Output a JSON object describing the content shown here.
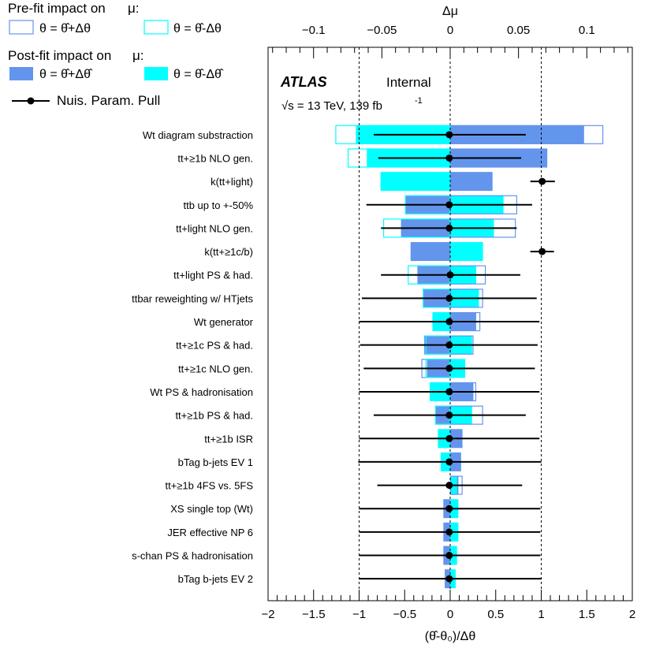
{
  "legend": {
    "prefit_title": "Pre-fit impact on",
    "postfit_title": "Post-fit impact on",
    "mu": "μ:",
    "plus_label": "θ = θ̂+Δθ",
    "minus_label": "θ = θ̂-Δθ",
    "postfit_plus_label": "θ = θ̂+Δθ̂",
    "postfit_minus_label": "θ = θ̂-Δθ̂",
    "pull_label": "Nuis. Param. Pull",
    "colors": {
      "plus": "#6495ed",
      "minus": "#00ffff",
      "pull": "#000000"
    }
  },
  "atlas": {
    "label": "ATLAS",
    "status": "Internal",
    "energy": "√s = 13 TeV, 139 fb",
    "lumi_exp": "-1"
  },
  "chart_data": {
    "type": "bar",
    "subtype": "ranking-plot",
    "title": "",
    "xlabel": "(θ̂-θ₀)/Δθ",
    "x2label": "Δμ",
    "xlim": [
      -2,
      2
    ],
    "x2lim": [
      -0.1333,
      0.1333
    ],
    "xticks": [
      -2,
      -1.5,
      -1,
      -0.5,
      0,
      0.5,
      1,
      1.5,
      2
    ],
    "x2ticks": [
      -0.1,
      -0.05,
      0,
      0.05,
      0.1
    ],
    "grid": false,
    "legend_position": "top-left",
    "categories": [
      "Wt diagram substraction",
      "tt+≥1b NLO gen.",
      "k(tt+light)",
      "ttb up to +-50%",
      "tt+light NLO gen.",
      "k(tt+≥1c/b)",
      "tt+light PS & had.",
      "ttbar reweighting w/ HTjets",
      "Wt generator",
      "tt+≥1c PS & had.",
      "tt+≥1c NLO gen.",
      "Wt PS & hadronisation",
      "tt+≥1b PS & had.",
      "tt+≥1b ISR",
      "bTag b-jets EV 1",
      "tt+≥1b 4FS vs. 5FS",
      "XS single top (Wt)",
      "JER effective NP 6",
      "s-chan PS & hadronisation",
      "bTag b-jets EV 2"
    ],
    "prefit_plus": [
      0.112,
      0.071,
      null,
      0.049,
      0.048,
      null,
      0.026,
      0.024,
      0.022,
      0.017,
      -0.021,
      0.019,
      0.024,
      null,
      null,
      0.009,
      null,
      null,
      null,
      null
    ],
    "prefit_minus": [
      -0.084,
      -0.075,
      null,
      -0.033,
      -0.049,
      null,
      -0.031,
      -0.02,
      null,
      -0.018,
      -0.018,
      null,
      -0.011,
      null,
      null,
      null,
      null,
      null,
      null,
      null
    ],
    "postfit_plus": [
      0.098,
      0.071,
      0.031,
      -0.033,
      -0.036,
      -0.029,
      -0.024,
      -0.02,
      0.019,
      -0.019,
      -0.017,
      0.017,
      -0.011,
      0.009,
      0.008,
      0.006,
      -0.005,
      -0.005,
      -0.005,
      -0.004
    ],
    "postfit_minus": [
      -0.069,
      -0.061,
      -0.051,
      0.039,
      0.032,
      0.024,
      0.019,
      0.021,
      -0.013,
      0.016,
      0.011,
      -0.015,
      0.016,
      -0.009,
      -0.007,
      0.005,
      0.006,
      0.006,
      0.005,
      0.004
    ],
    "pulls": [
      -0.01,
      -0.01,
      1.01,
      -0.01,
      -0.01,
      1.01,
      0.0,
      -0.01,
      -0.01,
      -0.01,
      -0.01,
      -0.01,
      -0.01,
      -0.01,
      -0.01,
      -0.01,
      -0.01,
      -0.01,
      -0.01,
      -0.01
    ],
    "pull_err_lo": [
      0.83,
      0.78,
      0.13,
      0.91,
      0.75,
      0.13,
      0.76,
      0.96,
      0.99,
      0.98,
      0.94,
      0.99,
      0.83,
      0.99,
      1.0,
      0.79,
      0.99,
      0.99,
      0.99,
      0.99
    ],
    "pull_err_hi": [
      0.84,
      0.79,
      0.14,
      0.91,
      0.74,
      0.13,
      0.77,
      0.96,
      0.99,
      0.97,
      0.94,
      0.99,
      0.84,
      0.99,
      1.01,
      0.8,
      1.0,
      1.0,
      1.0,
      1.01
    ]
  }
}
